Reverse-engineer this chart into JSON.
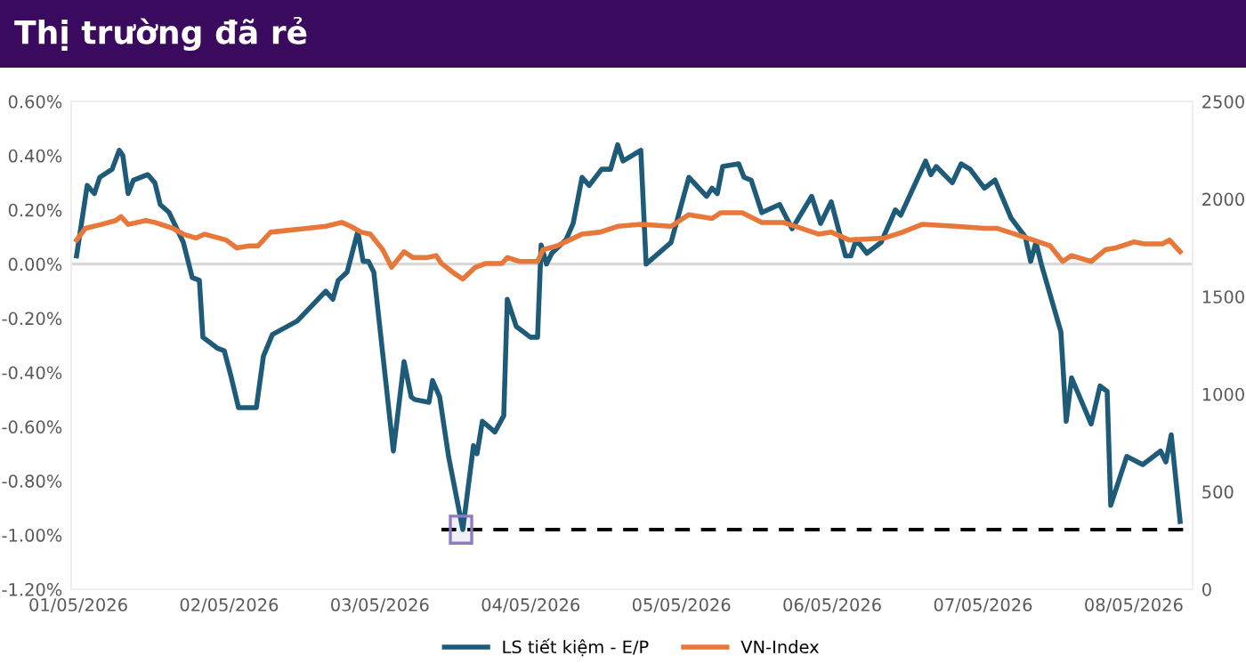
{
  "chart_data": {
    "type": "line",
    "title": "Thị trường đã rẻ",
    "series": [
      {
        "name": "LS tiết kiệm - E/P",
        "color": "#1d5b78",
        "axis": "y",
        "x": [
          "2026-04-30T23:43",
          "2026-05-01T01:25",
          "2026-05-01T02:33",
          "2026-05-01T03:24",
          "2026-05-01T05:23",
          "2026-05-01T06:31",
          "2026-05-01T07:05",
          "2026-05-01T07:56",
          "2026-05-01T08:47",
          "2026-05-01T11:03",
          "2026-05-01T12:11",
          "2026-05-01T13:02",
          "2026-05-01T14:27",
          "2026-05-01T16:43",
          "2026-05-01T18:08",
          "2026-05-01T19:16",
          "2026-05-01T19:50",
          "2026-05-01T22:06",
          "2026-05-01T23:14",
          "2026-05-02T00:22",
          "2026-05-02T01:30",
          "2026-05-02T04:20",
          "2026-05-02T05:28",
          "2026-05-02T06:53",
          "2026-05-02T10:51",
          "2026-05-02T15:23",
          "2026-05-02T16:31",
          "2026-05-02T17:22",
          "2026-05-02T18:47",
          "2026-05-02T20:29",
          "2026-05-02T21:20",
          "2026-05-02T22:11",
          "2026-05-02T23:02",
          "2026-05-03T02:09",
          "2026-05-03T03:51",
          "2026-05-03T04:59",
          "2026-05-03T05:33",
          "2026-05-03T07:49",
          "2026-05-03T08:23",
          "2026-05-03T09:31",
          "2026-05-03T10:56",
          "2026-05-03T13:12",
          "2026-05-03T14:54",
          "2026-05-03T15:28",
          "2026-05-03T16:19",
          "2026-05-03T18:18",
          "2026-05-03T19:43",
          "2026-05-03T20:17",
          "2026-05-03T21:42",
          "2026-05-03T23:58",
          "2026-05-04T01:06",
          "2026-05-04T01:40",
          "2026-05-04T02:31",
          "2026-05-04T03:22",
          "2026-05-04T05:38",
          "2026-05-04T06:46",
          "2026-05-04T08:11",
          "2026-05-04T09:19",
          "2026-05-04T11:18",
          "2026-05-04T12:43",
          "2026-05-04T13:51",
          "2026-05-04T14:42",
          "2026-05-04T17:32",
          "2026-05-04T18:23",
          "2026-05-04T22:21",
          "2026-05-05T01:11",
          "2026-05-05T04:01",
          "2026-05-05T04:52",
          "2026-05-05T05:43",
          "2026-05-05T06:34",
          "2026-05-05T09:07",
          "2026-05-05T09:58",
          "2026-05-05T11:06",
          "2026-05-05T12:48",
          "2026-05-05T15:38",
          "2026-05-05T17:37",
          "2026-05-05T20:44",
          "2026-05-05T22:09",
          "2026-05-05T23:51",
          "2026-05-06T02:07",
          "2026-05-06T02:58",
          "2026-05-06T03:49",
          "2026-05-06T05:31",
          "2026-05-06T07:47",
          "2026-05-06T10:03",
          "2026-05-06T10:54",
          "2026-05-06T14:52",
          "2026-05-06T15:43",
          "2026-05-06T16:34",
          "2026-05-06T19:07",
          "2026-05-06T20:32",
          "2026-05-06T21:57",
          "2026-05-07T00:13",
          "2026-05-07T01:55",
          "2026-05-07T04:28",
          "2026-05-07T06:44",
          "2026-05-07T07:35",
          "2026-05-07T08:26",
          "2026-05-07T09:17",
          "2026-05-07T12:24",
          "2026-05-07T13:15",
          "2026-05-07T14:06",
          "2026-05-07T17:13",
          "2026-05-07T18:38",
          "2026-05-07T19:46",
          "2026-05-07T20:20",
          "2026-05-07T22:53",
          "2026-05-08T01:26",
          "2026-05-08T04:16",
          "2026-05-08T05:07",
          "2026-05-08T05:58",
          "2026-05-08T07:23"
        ],
        "values": [
          0.03,
          0.29,
          0.26,
          0.32,
          0.35,
          0.42,
          0.4,
          0.26,
          0.31,
          0.33,
          0.3,
          0.22,
          0.19,
          0.08,
          -0.05,
          -0.06,
          -0.27,
          -0.31,
          -0.32,
          -0.42,
          -0.53,
          -0.53,
          -0.34,
          -0.26,
          -0.21,
          -0.1,
          -0.13,
          -0.06,
          -0.03,
          0.12,
          0.01,
          0.01,
          -0.03,
          -0.69,
          -0.36,
          -0.49,
          -0.5,
          -0.51,
          -0.43,
          -0.49,
          -0.71,
          -0.98,
          -0.67,
          -0.7,
          -0.58,
          -0.62,
          -0.56,
          -0.13,
          -0.23,
          -0.27,
          -0.27,
          0.07,
          0.0,
          0.04,
          0.09,
          0.15,
          0.32,
          0.29,
          0.35,
          0.35,
          0.44,
          0.38,
          0.42,
          0.0,
          0.08,
          0.32,
          0.25,
          0.28,
          0.26,
          0.36,
          0.37,
          0.32,
          0.31,
          0.19,
          0.22,
          0.13,
          0.25,
          0.15,
          0.23,
          0.03,
          0.03,
          0.09,
          0.04,
          0.08,
          0.2,
          0.18,
          0.38,
          0.33,
          0.36,
          0.3,
          0.37,
          0.35,
          0.28,
          0.31,
          0.17,
          0.1,
          0.01,
          0.08,
          0.0,
          -0.25,
          -0.58,
          -0.42,
          -0.59,
          -0.45,
          -0.47,
          -0.89,
          -0.71,
          -0.74,
          -0.69,
          -0.73,
          -0.63,
          -0.95
        ]
      },
      {
        "name": "VN-Index",
        "color": "#e8773a",
        "axis": "y2",
        "x": [
          "2026-04-30T23:43",
          "2026-05-01T01:08",
          "2026-05-01T03:41",
          "2026-05-01T05:57",
          "2026-05-01T06:48",
          "2026-05-01T07:56",
          "2026-05-01T10:46",
          "2026-05-01T12:11",
          "2026-05-01T15:01",
          "2026-05-01T16:43",
          "2026-05-01T18:42",
          "2026-05-01T20:07",
          "2026-05-01T23:31",
          "2026-05-02T01:13",
          "2026-05-02T03:12",
          "2026-05-02T04:37",
          "2026-05-02T06:36",
          "2026-05-02T15:23",
          "2026-05-02T17:56",
          "2026-05-02T19:21",
          "2026-05-02T21:03",
          "2026-05-02T22:28",
          "2026-05-03T00:27",
          "2026-05-03T01:52",
          "2026-05-03T03:51",
          "2026-05-03T05:16",
          "2026-05-03T07:32",
          "2026-05-03T08:57",
          "2026-05-03T09:48",
          "2026-05-03T11:47",
          "2026-05-03T13:12",
          "2026-05-03T15:11",
          "2026-05-03T16:53",
          "2026-05-03T19:26",
          "2026-05-03T20:17",
          "2026-05-03T22:16",
          "2026-05-04T01:06",
          "2026-05-04T01:57",
          "2026-05-04T04:13",
          "2026-05-04T06:12",
          "2026-05-04T08:11",
          "2026-05-04T11:01",
          "2026-05-04T13:51",
          "2026-05-04T17:32",
          "2026-05-04T22:21",
          "2026-05-05T01:11",
          "2026-05-05T04:52",
          "2026-05-05T06:17",
          "2026-05-05T09:41",
          "2026-05-05T12:48",
          "2026-05-05T16:12",
          "2026-05-05T19:02",
          "2026-05-05T21:52",
          "2026-05-05T23:51",
          "2026-05-06T02:41",
          "2026-05-06T08:21",
          "2026-05-06T11:11",
          "2026-05-06T14:18",
          "2026-05-06T19:41",
          "2026-05-07T00:13",
          "2026-05-07T02:12",
          "2026-05-07T07:01",
          "2026-05-07T10:42",
          "2026-05-07T12:41",
          "2026-05-07T14:06",
          "2026-05-07T17:13",
          "2026-05-07T19:29",
          "2026-05-07T21:11",
          "2026-05-08T00:01",
          "2026-05-08T01:43",
          "2026-05-08T04:33",
          "2026-05-08T05:41",
          "2026-05-08T07:23"
        ],
        "values": [
          1790,
          1850,
          1870,
          1890,
          1910,
          1870,
          1890,
          1880,
          1850,
          1820,
          1800,
          1820,
          1790,
          1750,
          1760,
          1760,
          1830,
          1860,
          1880,
          1860,
          1830,
          1820,
          1740,
          1650,
          1730,
          1700,
          1700,
          1710,
          1670,
          1620,
          1590,
          1650,
          1670,
          1670,
          1700,
          1680,
          1680,
          1740,
          1760,
          1790,
          1820,
          1830,
          1860,
          1870,
          1860,
          1920,
          1900,
          1930,
          1930,
          1880,
          1880,
          1850,
          1820,
          1830,
          1790,
          1800,
          1830,
          1870,
          1860,
          1850,
          1850,
          1800,
          1760,
          1680,
          1710,
          1680,
          1740,
          1750,
          1780,
          1770,
          1770,
          1790,
          1730
        ]
      },
      {
        "color": "#000000",
        "axis": "y",
        "line_style": "dashed",
        "x": [
          "2026-05-03T09:48",
          "2026-05-08T09:20"
        ],
        "values": [
          -0.98,
          -0.98
        ]
      }
    ],
    "xlim": [
      "2026-04-30T22:52",
      "2026-05-08T09:22"
    ],
    "xticks": [
      {
        "value": "2026-05-01",
        "label": "01/05/2026"
      },
      {
        "value": "2026-05-02",
        "label": "02/05/2026"
      },
      {
        "value": "2026-05-03",
        "label": "03/05/2026"
      },
      {
        "value": "2026-05-04",
        "label": "04/05/2026"
      },
      {
        "value": "2026-05-05",
        "label": "05/05/2026"
      },
      {
        "value": "2026-05-06",
        "label": "06/05/2026"
      },
      {
        "value": "2026-05-07",
        "label": "07/05/2026"
      },
      {
        "value": "2026-05-08",
        "label": "08/05/2026"
      }
    ],
    "ylim": [
      -1.2,
      0.6
    ],
    "yticks": [
      {
        "value": -1.2,
        "label": "-1.20%"
      },
      {
        "value": -1.0,
        "label": "-1.00%"
      },
      {
        "value": -0.8,
        "label": "-0.80%"
      },
      {
        "value": -0.6,
        "label": "-0.60%"
      },
      {
        "value": -0.4,
        "label": "-0.40%"
      },
      {
        "value": -0.2,
        "label": "-0.20%"
      },
      {
        "value": 0,
        "label": "0.00%"
      },
      {
        "value": 0.2,
        "label": "0.20%"
      },
      {
        "value": 0.4,
        "label": "0.40%"
      },
      {
        "value": 0.6,
        "label": "0.60%"
      }
    ],
    "y2lim": [
      0,
      2500
    ],
    "y2ticks": [
      0,
      500,
      1000,
      1500,
      2000,
      2500
    ],
    "ref_lines": [
      {
        "axis": "y",
        "value": 0,
        "color": "#d9d9d9"
      }
    ],
    "bands": [
      {
        "axis": "x",
        "from": "2026-05-03T11:13",
        "to": "2026-05-03T14:37",
        "color": "#8e7cc3"
      }
    ],
    "grid": false,
    "legend": "bottom",
    "line_style": "solid",
    "marker": "none"
  }
}
